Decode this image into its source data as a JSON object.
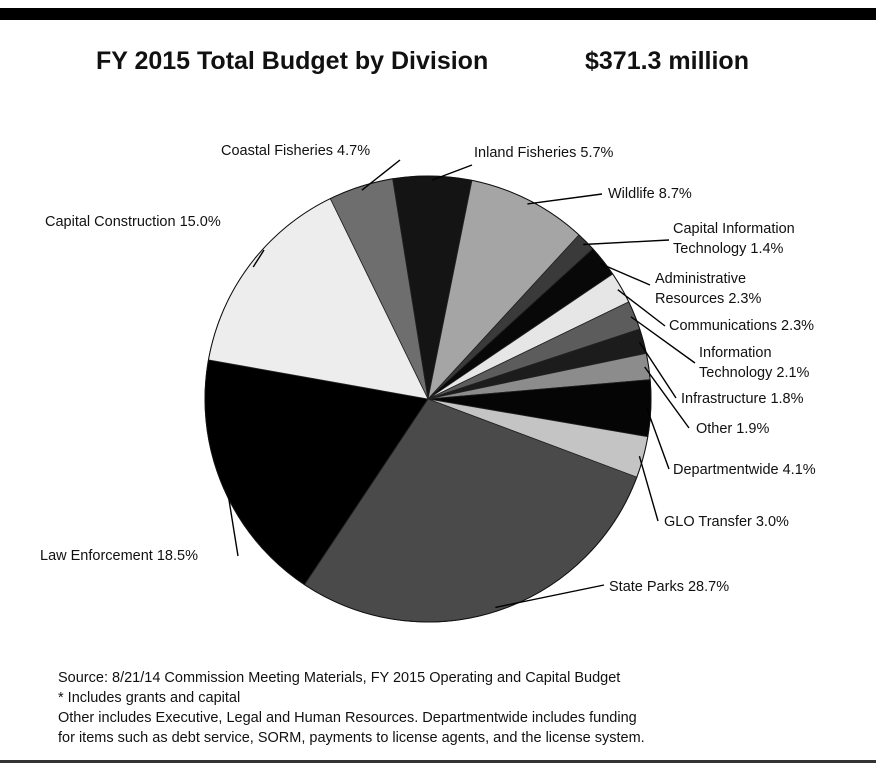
{
  "header": {
    "title": "FY 2015 Total Budget by Division",
    "amount": "$371.3 million"
  },
  "chart_data": {
    "type": "pie",
    "title": "FY 2015 Total Budget by Division",
    "total_label": "$371.3 million",
    "start": "top, clockwise",
    "slices": [
      {
        "name": "Coastal Fisheries",
        "value": 4.7,
        "label": "Coastal Fisheries  4.7%",
        "color": "#6e6e6e"
      },
      {
        "name": "Inland Fisheries",
        "value": 5.7,
        "label": "Inland Fisheries  5.7%",
        "color": "#141414"
      },
      {
        "name": "Wildlife",
        "value": 8.7,
        "label": "Wildlife  8.7%",
        "color": "#a5a5a5"
      },
      {
        "name": "Capital Information Technology",
        "value": 1.4,
        "label": [
          "Capital Information",
          "Technology  1.4%"
        ],
        "color": "#3a3a3a"
      },
      {
        "name": "Administrative Resources",
        "value": 2.3,
        "label": [
          "Administrative",
          "Resources  2.3%"
        ],
        "color": "#080808"
      },
      {
        "name": "Communications",
        "value": 2.3,
        "label": "Communications  2.3%",
        "color": "#e6e6e6"
      },
      {
        "name": "Information Technology",
        "value": 2.1,
        "label": [
          "Information",
          "Technology  2.1%"
        ],
        "color": "#5c5c5c"
      },
      {
        "name": "Infrastructure",
        "value": 1.8,
        "label": "Infrastructure  1.8%",
        "color": "#1c1c1c"
      },
      {
        "name": "Other",
        "value": 1.9,
        "label": "Other  1.9%",
        "color": "#8c8c8c"
      },
      {
        "name": "Departmentwide",
        "value": 4.1,
        "label": "Departmentwide  4.1%",
        "color": "#050505"
      },
      {
        "name": "GLO Transfer",
        "value": 3.0,
        "label": "GLO Transfer  3.0%",
        "color": "#c4c4c4"
      },
      {
        "name": "State Parks",
        "value": 28.7,
        "label": "State Parks  28.7%",
        "color": "#4a4a4a"
      },
      {
        "name": "Law Enforcement",
        "value": 18.5,
        "label": "Law Enforcement  18.5%",
        "color": "#000000"
      },
      {
        "name": "Capital Construction",
        "value": 15.0,
        "label": "Capital Construction  15.0%",
        "color": "#ededed"
      }
    ]
  },
  "notes": {
    "source": "Source: 8/21/14 Commission Meeting Materials, FY 2015 Operating and Capital Budget",
    "asterisk": "* Includes grants and capital",
    "other_line1": "Other includes Executive, Legal and Human Resources. Departmentwide includes funding",
    "other_line2": "for items such as debt service, SORM, payments to license agents, and the license system."
  }
}
